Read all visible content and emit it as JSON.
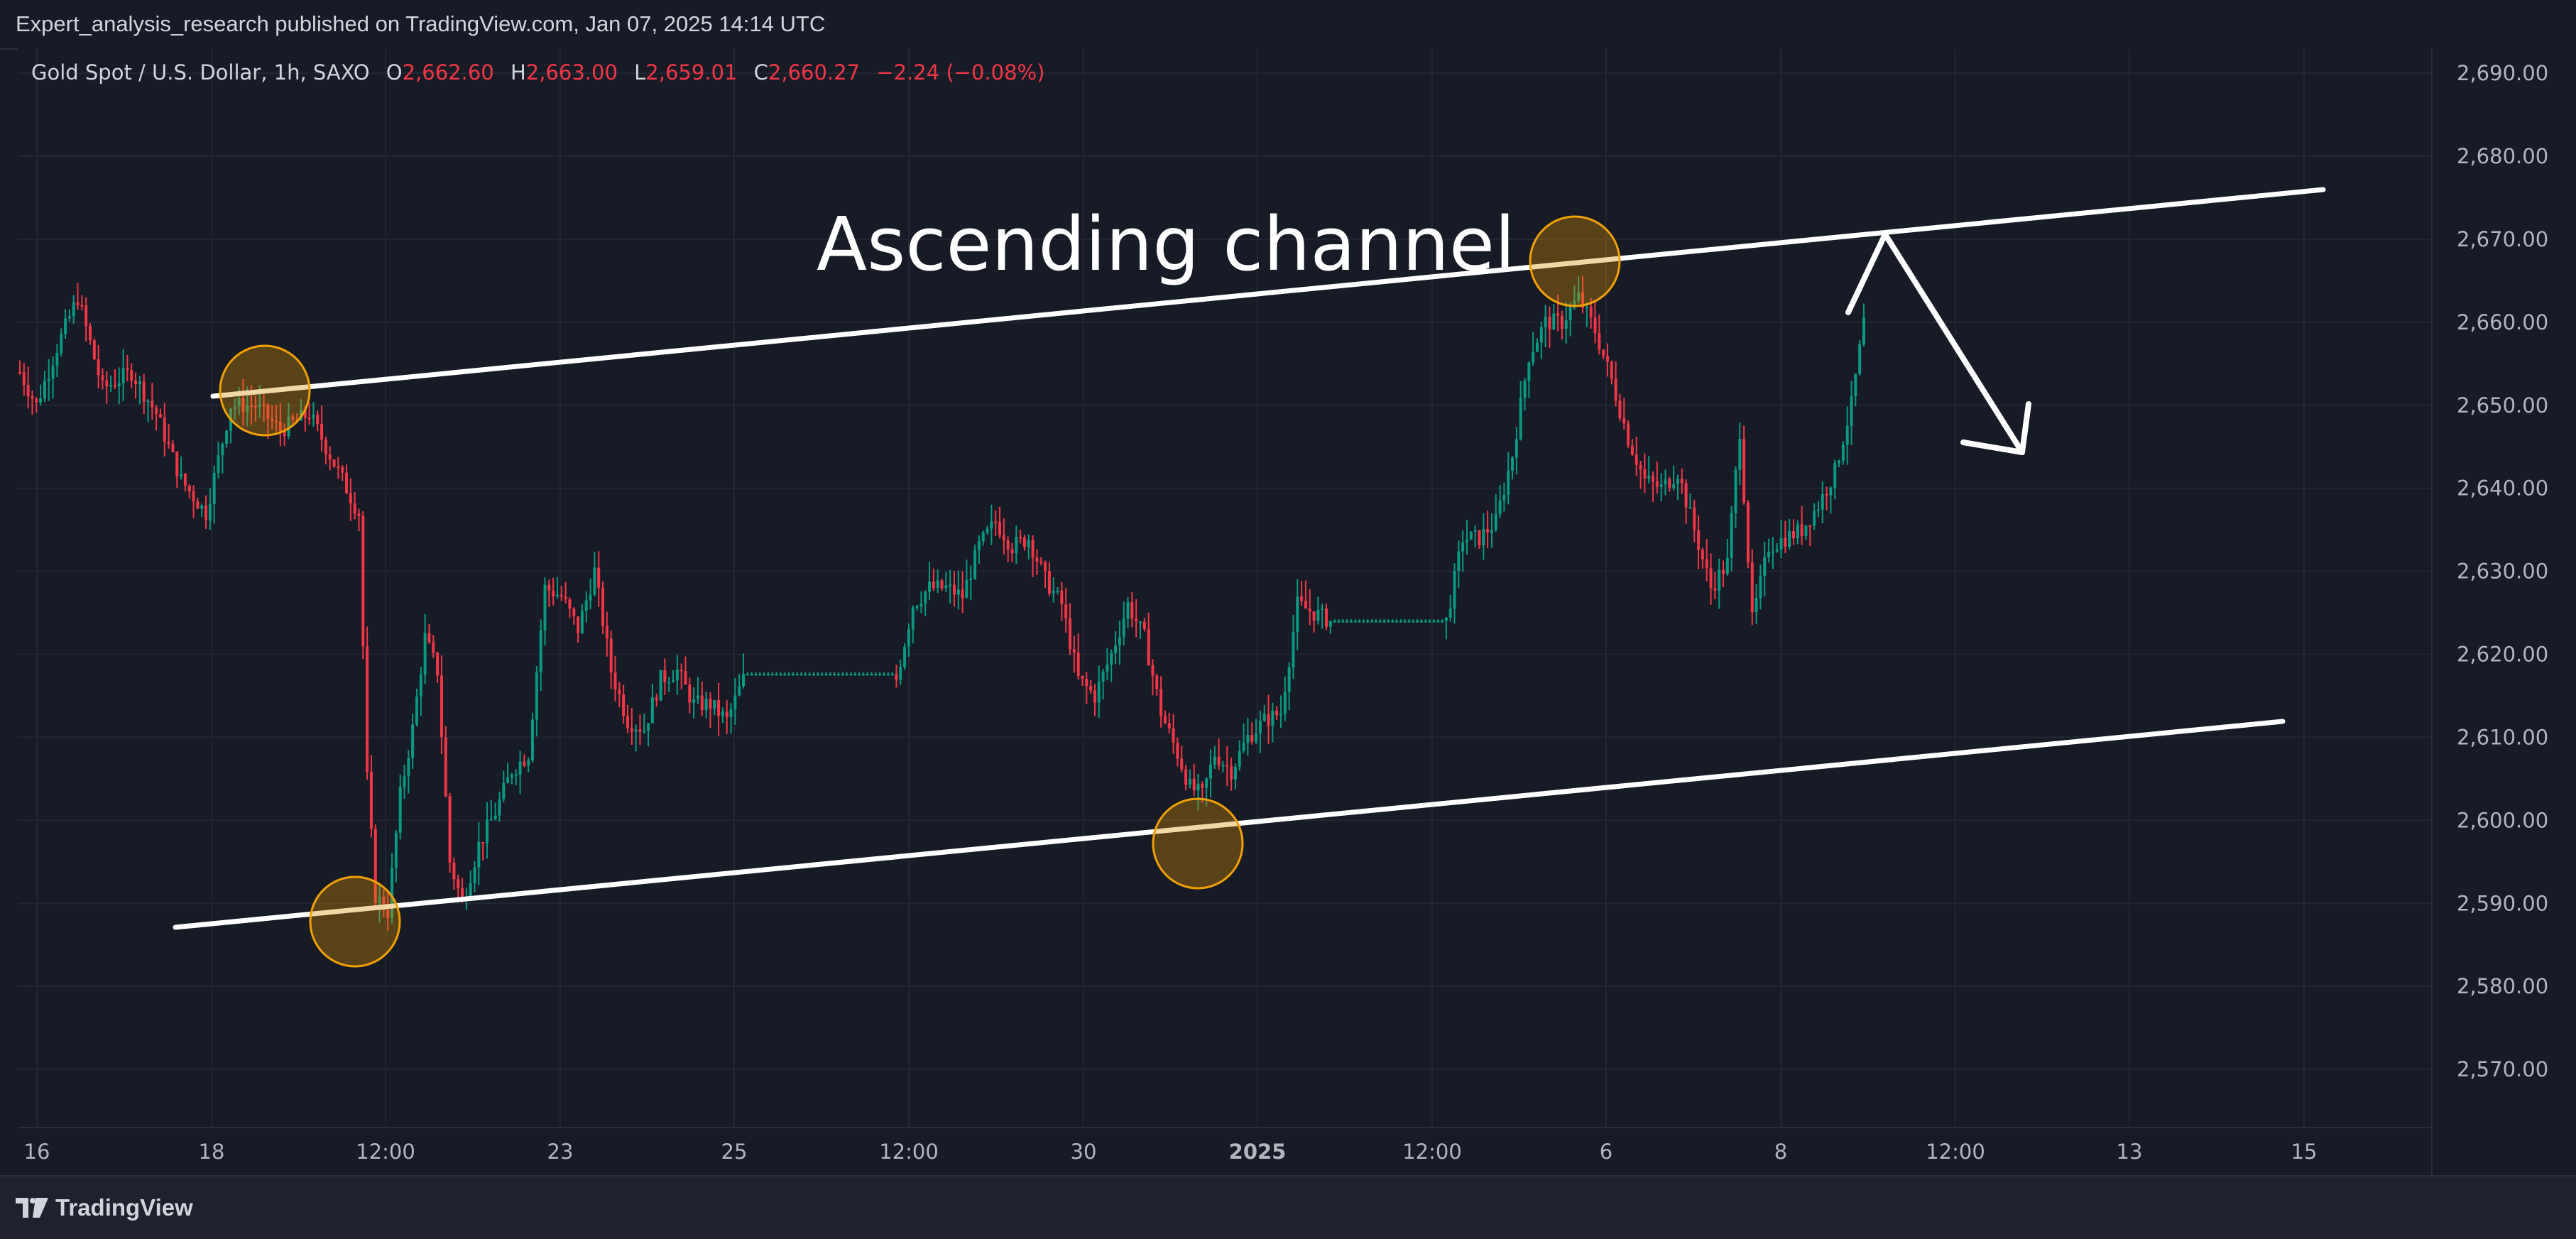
{
  "header": {
    "publisher_line": "Expert_analysis_research published on TradingView.com, Jan 07, 2025 14:14 UTC"
  },
  "footer": {
    "brand": "TradingView"
  },
  "chart_data": {
    "type": "candlestick",
    "legend": {
      "symbol": "Gold Spot / U.S. Dollar, 1h, SAXO",
      "o_label": "O",
      "o_value": "2,662.60",
      "h_label": "H",
      "h_value": "2,663.00",
      "l_label": "L",
      "l_value": "2,659.01",
      "c_label": "C",
      "c_value": "2,660.27",
      "change": "−2.24 (−0.08%)"
    },
    "annotation_text": "Ascending channel",
    "y_ticks": [
      "2,690.00",
      "2,680.00",
      "2,670.00",
      "2,660.00",
      "2,650.00",
      "2,640.00",
      "2,630.00",
      "2,620.00",
      "2,610.00",
      "2,600.00",
      "2,590.00",
      "2,580.00",
      "2,570.00"
    ],
    "ylim": [
      2563,
      2693
    ],
    "x_ticks": [
      {
        "label": "16",
        "bold": false
      },
      {
        "label": "18",
        "bold": false
      },
      {
        "label": "12:00",
        "bold": false
      },
      {
        "label": "23",
        "bold": false
      },
      {
        "label": "25",
        "bold": false
      },
      {
        "label": "12:00",
        "bold": false
      },
      {
        "label": "30",
        "bold": false
      },
      {
        "label": "2025",
        "bold": true
      },
      {
        "label": "12:00",
        "bold": false
      },
      {
        "label": "6",
        "bold": false
      },
      {
        "label": "8",
        "bold": false
      },
      {
        "label": "12:00",
        "bold": false
      },
      {
        "label": "13",
        "bold": false
      },
      {
        "label": "15",
        "bold": false
      }
    ],
    "price_path": [
      [
        0,
        2654
      ],
      [
        4,
        2650
      ],
      [
        9,
        2657
      ],
      [
        14,
        2663
      ],
      [
        20,
        2652
      ],
      [
        27,
        2654
      ],
      [
        33,
        2649
      ],
      [
        39,
        2641
      ],
      [
        45,
        2637
      ],
      [
        51,
        2650
      ],
      [
        57,
        2650
      ],
      [
        63,
        2647
      ],
      [
        70,
        2649
      ],
      [
        76,
        2643
      ],
      [
        82,
        2637
      ],
      [
        84,
        2605
      ],
      [
        86,
        2591
      ],
      [
        89,
        2589
      ],
      [
        92,
        2603
      ],
      [
        95,
        2611
      ],
      [
        98,
        2622
      ],
      [
        101,
        2618
      ],
      [
        104,
        2595
      ],
      [
        107,
        2590
      ],
      [
        111,
        2597
      ],
      [
        115,
        2601
      ],
      [
        119,
        2606
      ],
      [
        123,
        2608
      ],
      [
        127,
        2628
      ],
      [
        131,
        2627
      ],
      [
        135,
        2623
      ],
      [
        139,
        2630
      ],
      [
        143,
        2618
      ],
      [
        147,
        2612
      ],
      [
        151,
        2611
      ],
      [
        155,
        2617
      ],
      [
        159,
        2618
      ],
      [
        163,
        2614
      ],
      [
        167,
        2614
      ],
      [
        171,
        2612
      ],
      [
        175,
        2617
      ],
      [
        183,
        2617
      ],
      [
        200,
        2617
      ],
      [
        212,
        2617
      ],
      [
        216,
        2626
      ],
      [
        220,
        2628
      ],
      [
        224,
        2628
      ],
      [
        228,
        2627
      ],
      [
        232,
        2633
      ],
      [
        236,
        2636
      ],
      [
        240,
        2633
      ],
      [
        244,
        2634
      ],
      [
        248,
        2629
      ],
      [
        252,
        2626
      ],
      [
        256,
        2617
      ],
      [
        260,
        2615
      ],
      [
        264,
        2620
      ],
      [
        268,
        2626
      ],
      [
        272,
        2622
      ],
      [
        276,
        2613
      ],
      [
        280,
        2608
      ],
      [
        283,
        2604
      ],
      [
        286,
        2603
      ],
      [
        289,
        2608
      ],
      [
        293,
        2606
      ],
      [
        297,
        2610
      ],
      [
        301,
        2612
      ],
      [
        305,
        2613
      ],
      [
        309,
        2626
      ],
      [
        313,
        2625
      ],
      [
        317,
        2624
      ],
      [
        325,
        2624
      ],
      [
        340,
        2624
      ],
      [
        345,
        2624
      ],
      [
        349,
        2634
      ],
      [
        353,
        2634
      ],
      [
        357,
        2636
      ],
      [
        361,
        2644
      ],
      [
        365,
        2656
      ],
      [
        369,
        2660
      ],
      [
        373,
        2660
      ],
      [
        377,
        2663
      ],
      [
        381,
        2659
      ],
      [
        385,
        2653
      ],
      [
        389,
        2646
      ],
      [
        393,
        2641
      ],
      [
        397,
        2640
      ],
      [
        401,
        2642
      ],
      [
        405,
        2635
      ],
      [
        409,
        2628
      ],
      [
        413,
        2631
      ],
      [
        416,
        2647
      ],
      [
        419,
        2624
      ],
      [
        423,
        2633
      ],
      [
        427,
        2634
      ],
      [
        431,
        2635
      ],
      [
        435,
        2638
      ],
      [
        439,
        2642
      ],
      [
        443,
        2650
      ],
      [
        446,
        2660
      ]
    ]
  }
}
